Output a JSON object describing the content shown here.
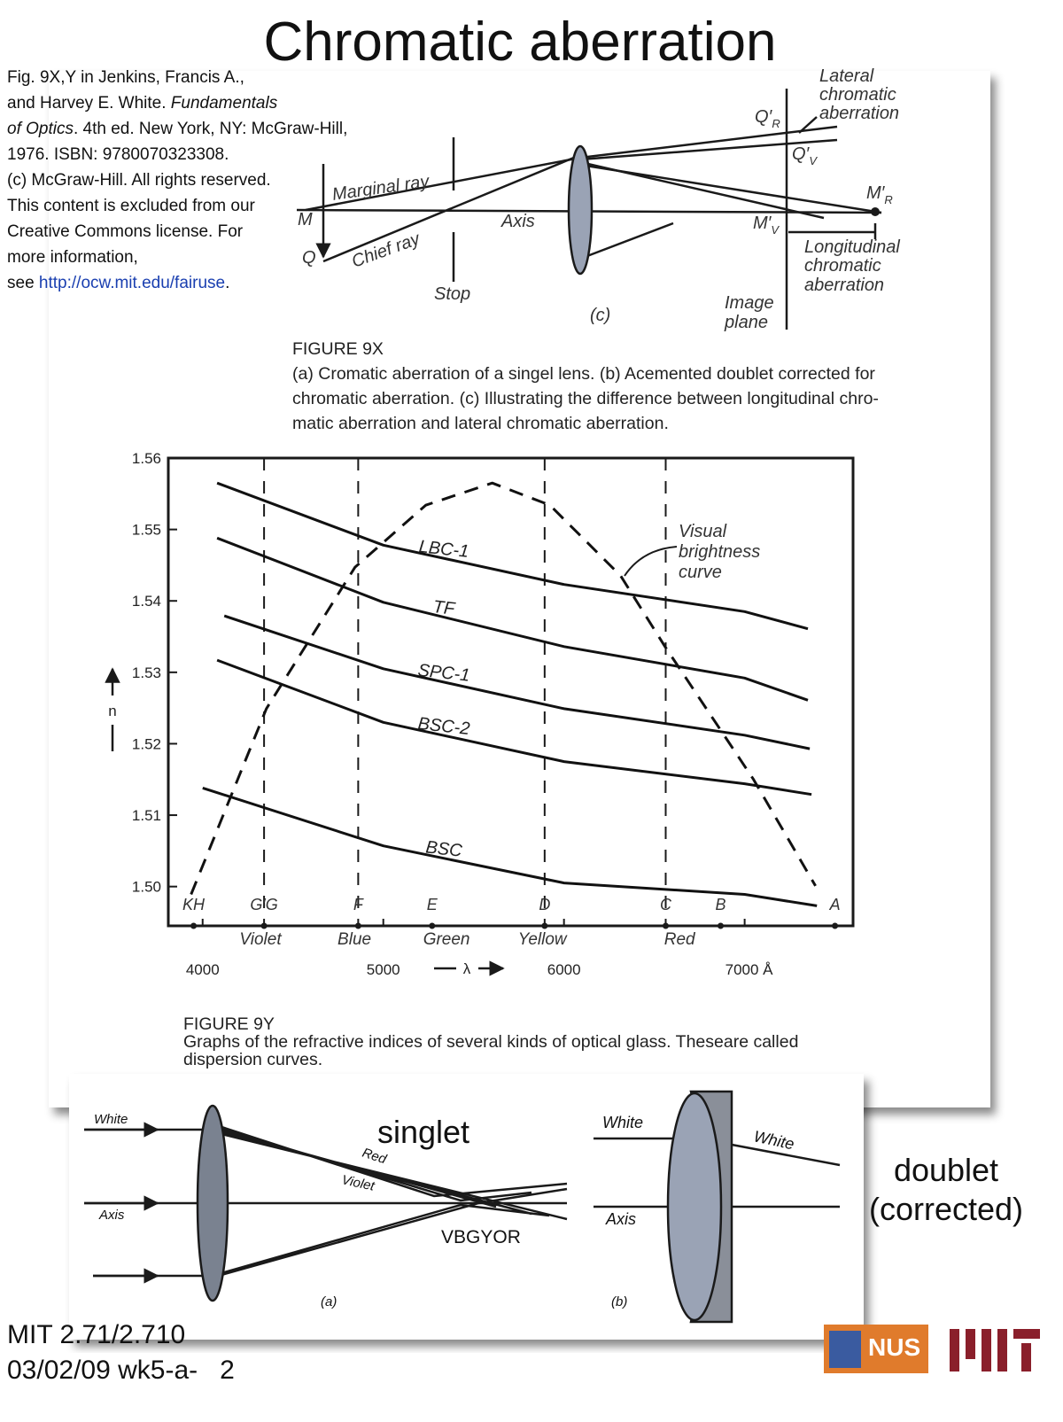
{
  "title": "Chromatic aberration",
  "citation": [
    [
      "Fig. 9X,Y in Jenkins, Francis A.,"
    ],
    [
      "and Harvey E. White. ",
      "Fundamentals"
    ],
    [
      "of Optics",
      ". 4th ed. New York, NY: McGraw-Hill,"
    ],
    [
      "1976. ISBN: 9780070323308."
    ],
    [
      "(c) McGraw-Hill.  All rights reserved."
    ],
    [
      "This content is excluded from our"
    ],
    [
      "Creative Commons license. For"
    ],
    [
      "more information,"
    ],
    [
      "see ",
      "http://ocw.mit.edu/fairuse",
      "."
    ]
  ],
  "diagram_c": {
    "lateral": [
      "Lateral",
      "chromatic",
      "aberration"
    ],
    "q_r": {
      "main": "Q′",
      "sub": "R"
    },
    "q_v": {
      "main": "Q′",
      "sub": "V"
    },
    "m_r": {
      "main": "M′",
      "sub": "R"
    },
    "m_v": {
      "main": "M′",
      "sub": "V"
    },
    "marginal_ray": "Marginal ray",
    "m": "M",
    "q": "Q",
    "chief_ray": "Chief ray",
    "axis": "Axis",
    "stop": "Stop",
    "longitudinal": [
      "Longitudinal",
      "chromatic",
      "aberration"
    ],
    "image_plane": [
      "Image",
      "plane"
    ],
    "panel": "(c)"
  },
  "caption_9x": {
    "heading": "FIGURE 9X",
    "lines": [
      "(a) Cromatic aberration of a singel lens. (b) Acemented doublet corrected for",
      "chromatic aberration. (c) Illustrating the difference between longitudinal chro-",
      "matic aberration and lateral chromatic aberration."
    ]
  },
  "chart_data": {
    "type": "line",
    "y_label": "n",
    "x_label": "λ",
    "xlim": [
      3810,
      7600
    ],
    "ylim": [
      1.4945,
      1.56
    ],
    "xticks": [
      4000,
      5000,
      6000,
      {
        "value": 7000,
        "label": "7000 Å"
      }
    ],
    "yticks": [
      {
        "value": 1.5,
        "label": "1.50"
      },
      1.51,
      1.52,
      1.53,
      1.54,
      1.55,
      1.56
    ],
    "grid": false,
    "series": [
      {
        "name": "LBC-1",
        "color": "#111111",
        "style": "solid",
        "x": [
          4080,
          5000,
          6000,
          7000,
          7350
        ],
        "values": [
          1.5565,
          1.5478,
          1.5423,
          1.5385,
          1.5361
        ]
      },
      {
        "name": "TF",
        "color": "#111111",
        "style": "solid",
        "x": [
          4080,
          5000,
          6000,
          7000,
          7350
        ],
        "values": [
          1.5488,
          1.5398,
          1.5336,
          1.5292,
          1.5261
        ]
      },
      {
        "name": "SPC-1",
        "color": "#111111",
        "style": "solid",
        "x": [
          4120,
          5000,
          6000,
          7000,
          7360
        ],
        "values": [
          1.5379,
          1.5305,
          1.5249,
          1.5212,
          1.5193
        ]
      },
      {
        "name": "BSC-2",
        "color": "#111111",
        "style": "solid",
        "x": [
          4080,
          5000,
          6000,
          7000,
          7370
        ],
        "values": [
          1.5317,
          1.523,
          1.5175,
          1.5144,
          1.5129
        ]
      },
      {
        "name": "BSC",
        "color": "#111111",
        "style": "solid",
        "x": [
          4000,
          5000,
          6000,
          7000,
          7400
        ],
        "values": [
          1.5138,
          1.5057,
          1.5005,
          1.4989,
          1.4973
        ]
      },
      {
        "name": "Visual brightness curve",
        "color": "#111111",
        "style": "dashed",
        "x": [
          3936,
          4353,
          4843,
          5235,
          5603,
          5922,
          6314,
          6559,
          7049,
          7392
        ],
        "values": [
          1.4989,
          1.5249,
          1.5447,
          1.5534,
          1.5565,
          1.5534,
          1.5435,
          1.5336,
          1.515,
          1.5001
        ]
      }
    ],
    "brightness_note": [
      "Visual",
      "brightness",
      "curve"
    ],
    "spectral_lines": [
      {
        "label": "KH",
        "value": 3950,
        "line": false
      },
      {
        "label": "G′G",
        "value": 4340,
        "line": true
      },
      {
        "label": "F",
        "value": 4861,
        "line": true
      },
      {
        "label": "E",
        "value": 5270,
        "line": false
      },
      {
        "label": "D",
        "value": 5893,
        "line": true
      },
      {
        "label": "C",
        "value": 6563,
        "line": true
      },
      {
        "label": "B",
        "value": 6867,
        "line": false
      },
      {
        "label": "A",
        "value": 7500,
        "line": false
      }
    ],
    "color_bands": [
      {
        "label": "Violet",
        "value": 4320
      },
      {
        "label": "Blue",
        "value": 4840
      },
      {
        "label": "Green",
        "value": 5350
      },
      {
        "label": "Yellow",
        "value": 5880
      },
      {
        "label": "Red",
        "value": 6640
      }
    ]
  },
  "caption_9y": {
    "heading": "FIGURE 9Y",
    "lines": [
      "Graphs of the refractive indices of several kinds of optical glass. Theseare called",
      "dispersion curves."
    ]
  },
  "diagram_a": {
    "white": "White",
    "axis": "Axis",
    "red": "Red",
    "violet": "Violet",
    "order": "VBGYOR",
    "panel": "(a)"
  },
  "diagram_b": {
    "white_in": "White",
    "white_out": "White",
    "axis": "Axis",
    "panel": "(b)"
  },
  "overlay": {
    "singlet": "singlet",
    "doublet": [
      "doublet",
      "(corrected)"
    ]
  },
  "footer": [
    "MIT 2.71/2.710",
    "03/02/09 wk5-a-   2"
  ],
  "logo": "NUS"
}
